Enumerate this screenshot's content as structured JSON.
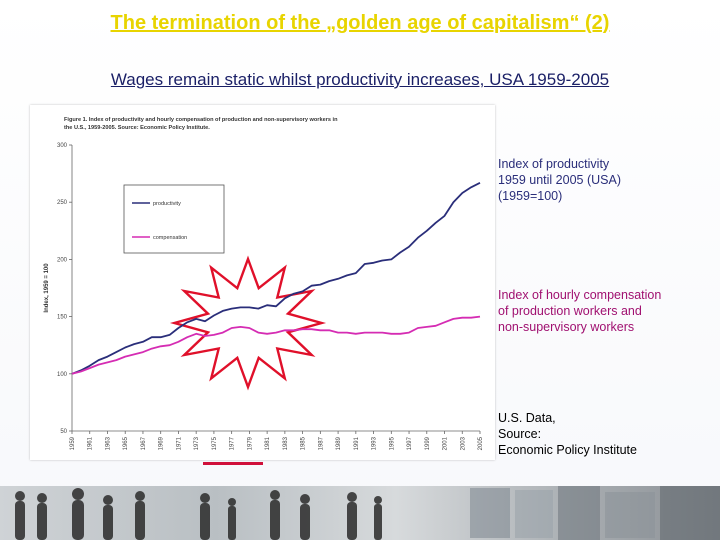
{
  "slide": {
    "title": "The termination of the „golden age of capitalism“ (2)",
    "subtitle": "Wages remain static whilst productivity increases, USA 1959-2005"
  },
  "figure": {
    "caption_line1": "Figure 1. Index of productivity and hourly compensation of production and non-supervisory workers in",
    "caption_line2": "the U.S., 1959-2005. Source: Economic Policy Institute."
  },
  "notes": {
    "productivity": [
      "Index of productivity",
      "1959 until 2005 (USA)",
      "(1959=100)"
    ],
    "compensation": [
      "Index of hourly compensation",
      "of production workers and",
      "non-supervisory workers"
    ],
    "source": [
      "U.S. Data,",
      "Source:",
      "Economic Policy Institute"
    ]
  },
  "colors": {
    "title": "#e8d400",
    "subtitle": "#1a1f66",
    "productivity_line": "#2a2e7a",
    "compensation_line": "#d52cb3",
    "starburst": "#e0102a",
    "highlight_underline": "#d0103a"
  },
  "chart_data": {
    "type": "line",
    "title": "",
    "xlabel": "",
    "ylabel": "Index, 1959 = 100",
    "ylim": [
      50,
      300
    ],
    "yticks": [
      50,
      100,
      150,
      200,
      250,
      300
    ],
    "xticks": [
      "1959",
      "1961",
      "1963",
      "1965",
      "1967",
      "1969",
      "1971",
      "1973",
      "1975",
      "1977",
      "1979",
      "1981",
      "1983",
      "1985",
      "1987",
      "1989",
      "1991",
      "1993",
      "1995",
      "1997",
      "1999",
      "2001",
      "2003",
      "2005"
    ],
    "legend": {
      "placement": "upper-left",
      "entries": [
        "productivity",
        "compensation"
      ]
    },
    "grid": false,
    "x": [
      1959,
      1960,
      1961,
      1962,
      1963,
      1964,
      1965,
      1966,
      1967,
      1968,
      1969,
      1970,
      1971,
      1972,
      1973,
      1974,
      1975,
      1976,
      1977,
      1978,
      1979,
      1980,
      1981,
      1982,
      1983,
      1984,
      1985,
      1986,
      1987,
      1988,
      1989,
      1990,
      1991,
      1992,
      1993,
      1994,
      1995,
      1996,
      1997,
      1998,
      1999,
      2000,
      2001,
      2002,
      2003,
      2004,
      2005
    ],
    "series": [
      {
        "name": "productivity",
        "values": [
          100,
          103,
          107,
          112,
          115,
          119,
          123,
          126,
          128,
          132,
          132,
          134,
          140,
          145,
          148,
          146,
          151,
          155,
          157,
          158,
          158,
          157,
          160,
          159,
          166,
          170,
          172,
          177,
          178,
          181,
          183,
          186,
          188,
          196,
          197,
          199,
          200,
          206,
          211,
          219,
          225,
          232,
          238,
          250,
          258,
          263,
          267
        ]
      },
      {
        "name": "compensation",
        "values": [
          100,
          102,
          105,
          108,
          110,
          112,
          115,
          117,
          119,
          122,
          124,
          125,
          128,
          132,
          135,
          133,
          134,
          136,
          140,
          141,
          140,
          136,
          135,
          136,
          138,
          138,
          139,
          139,
          138,
          138,
          136,
          136,
          135,
          136,
          136,
          136,
          135,
          135,
          136,
          140,
          141,
          142,
          145,
          148,
          149,
          149,
          150
        ]
      }
    ]
  }
}
